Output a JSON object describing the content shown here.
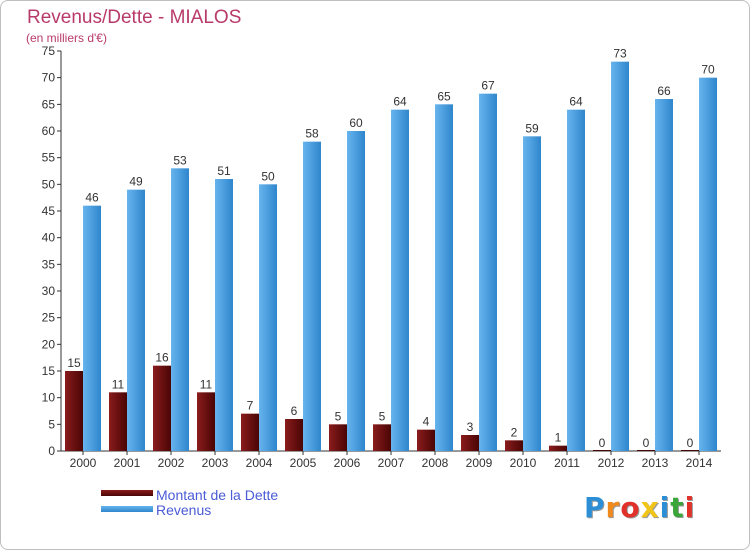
{
  "chart_data": {
    "type": "bar",
    "title": "Revenus/Dette - MIALOS",
    "subtitle": "(en milliers d'€)",
    "categories": [
      "2000",
      "2001",
      "2002",
      "2003",
      "2004",
      "2005",
      "2006",
      "2007",
      "2008",
      "2009",
      "2010",
      "2011",
      "2012",
      "2013",
      "2014"
    ],
    "series": [
      {
        "name": "Montant de la Dette",
        "color": "#6b0e0e",
        "values": [
          15,
          11,
          16,
          11,
          7,
          6,
          5,
          5,
          4,
          3,
          2,
          1,
          0,
          0,
          0
        ]
      },
      {
        "name": "Revenus",
        "color": "#3f9de0",
        "values": [
          46,
          49,
          53,
          51,
          50,
          58,
          60,
          64,
          65,
          67,
          59,
          64,
          73,
          66,
          70
        ]
      }
    ],
    "ylim": [
      0,
      75
    ],
    "yticks": [
      0,
      5,
      10,
      15,
      20,
      25,
      30,
      35,
      40,
      45,
      50,
      55,
      60,
      65,
      70,
      75
    ],
    "grid": false,
    "legend_position": "bottom-left"
  },
  "legend": {
    "dette_label": "Montant de la Dette",
    "revenus_label": "Revenus"
  },
  "logo": {
    "letters": [
      "P",
      "r",
      "o",
      "x",
      "i",
      "t",
      "i"
    ],
    "colors": [
      "#2c8fd6",
      "#f08a1c",
      "#e0312a",
      "#f0c419",
      "#2c8fd6",
      "#3aa63a",
      "#e0312a"
    ]
  }
}
